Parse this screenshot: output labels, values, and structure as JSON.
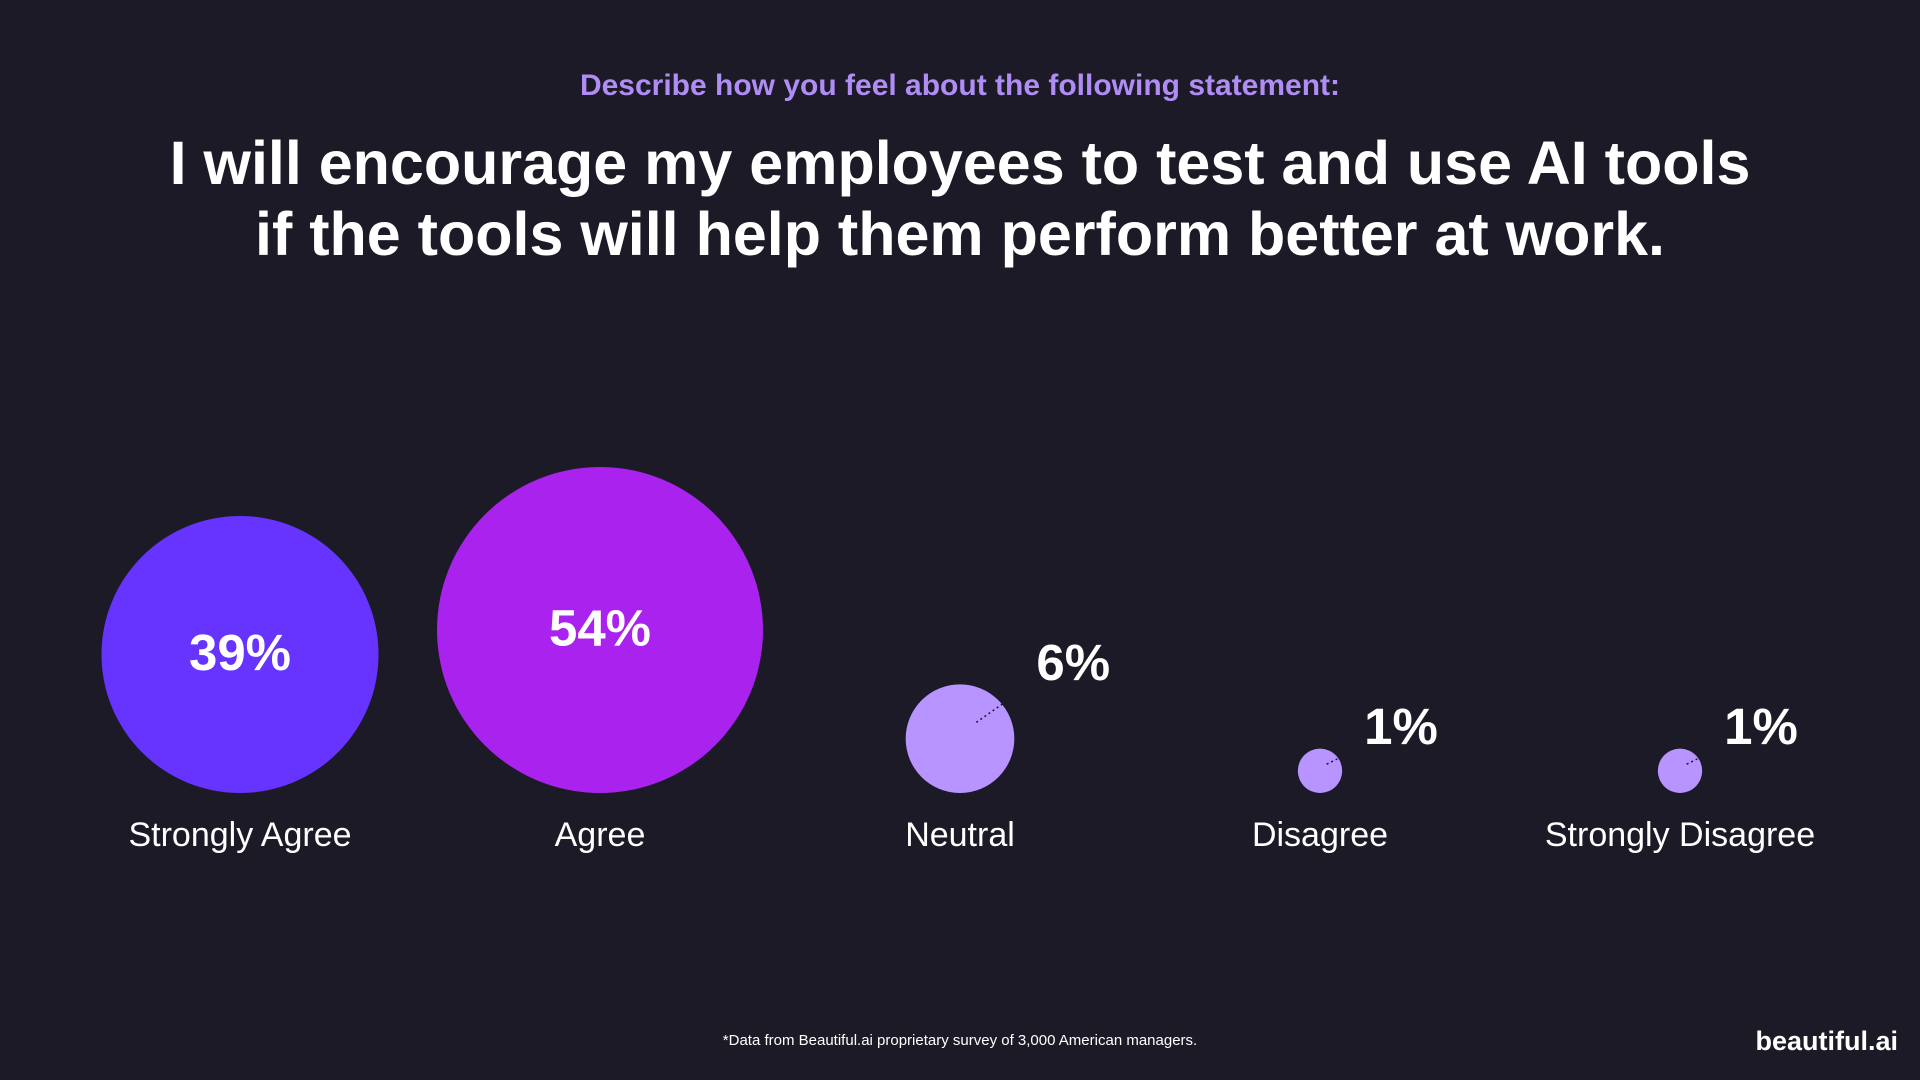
{
  "chart_data": {
    "type": "bubble",
    "subtitle": "Describe how you feel about the following statement:",
    "title": [
      "I will encourage my employees to test and use AI tools",
      "if the tools will help them perform better at work."
    ],
    "categories": [
      "Strongly Agree",
      "Agree",
      "Neutral",
      "Disagree",
      "Strongly Disagree"
    ],
    "values": [
      39,
      54,
      6,
      1,
      1
    ],
    "value_labels": [
      "39%",
      "54%",
      "6%",
      "1%",
      "1%"
    ],
    "colors": [
      "#6633ff",
      "#aa22ee",
      "#b794ff",
      "#b794ff",
      "#b794ff"
    ],
    "note": "*Data from Beautiful.ai proprietary survey of 3,000 American managers.",
    "logo": "beautiful.ai"
  }
}
